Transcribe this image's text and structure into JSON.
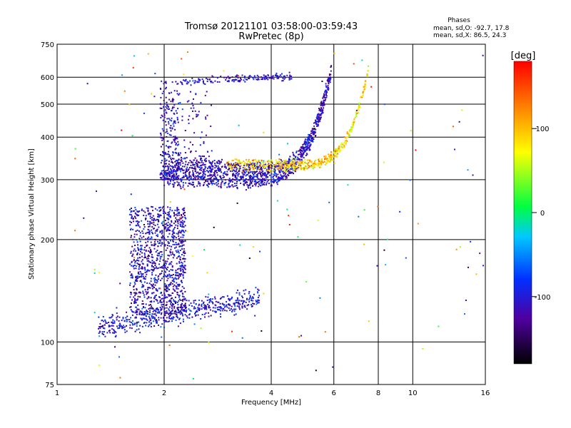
{
  "chart_data": {
    "type": "scatter",
    "title": "Tromsø 20121101 03:58:00-03:59:43",
    "subtitle": "RwPretec (8p)",
    "xlabel": "Frequency [MHz]",
    "ylabel": "Stationary phase Virtual Height [km]",
    "x_scale": "log",
    "y_scale": "log",
    "xlim": [
      1,
      16
    ],
    "ylim": [
      75,
      750
    ],
    "x_ticks": [
      1,
      2,
      4,
      6,
      8,
      10,
      16
    ],
    "y_ticks": [
      75,
      100,
      200,
      300,
      400,
      500,
      600,
      750
    ],
    "grid": true,
    "stats": {
      "header": "Phases",
      "line_o": "mean, sd,O: -92.7, 17.8",
      "line_x": "mean, sd,X:  86.5, 24.3"
    },
    "colorbar": {
      "label": "[deg]",
      "range": [
        -180,
        180
      ],
      "ticks": [
        -100,
        0,
        100
      ]
    },
    "traces": [
      {
        "region": "lower-E-Es",
        "f_min": 1.3,
        "f_max": 3.7,
        "h_start": 110,
        "h_end": 135,
        "phase_mean": -100
      },
      {
        "region": "F-layer-o",
        "f_min": 2.0,
        "f_max": 5.9,
        "h_start": 285,
        "h_end": 600,
        "phase_mean": -110
      },
      {
        "region": "F-layer-x",
        "f_min": 3.0,
        "f_max": 7.5,
        "h_start": 320,
        "h_end": 620,
        "phase_mean": 90
      },
      {
        "region": "spread-low",
        "f_min": 1.6,
        "f_max": 2.3,
        "h_start": 120,
        "h_end": 250,
        "phase_mean": -110
      },
      {
        "region": "spread-high",
        "f_min": 1.95,
        "f_max": 2.2,
        "h_start": 300,
        "h_end": 590,
        "phase_mean": -110
      }
    ]
  }
}
